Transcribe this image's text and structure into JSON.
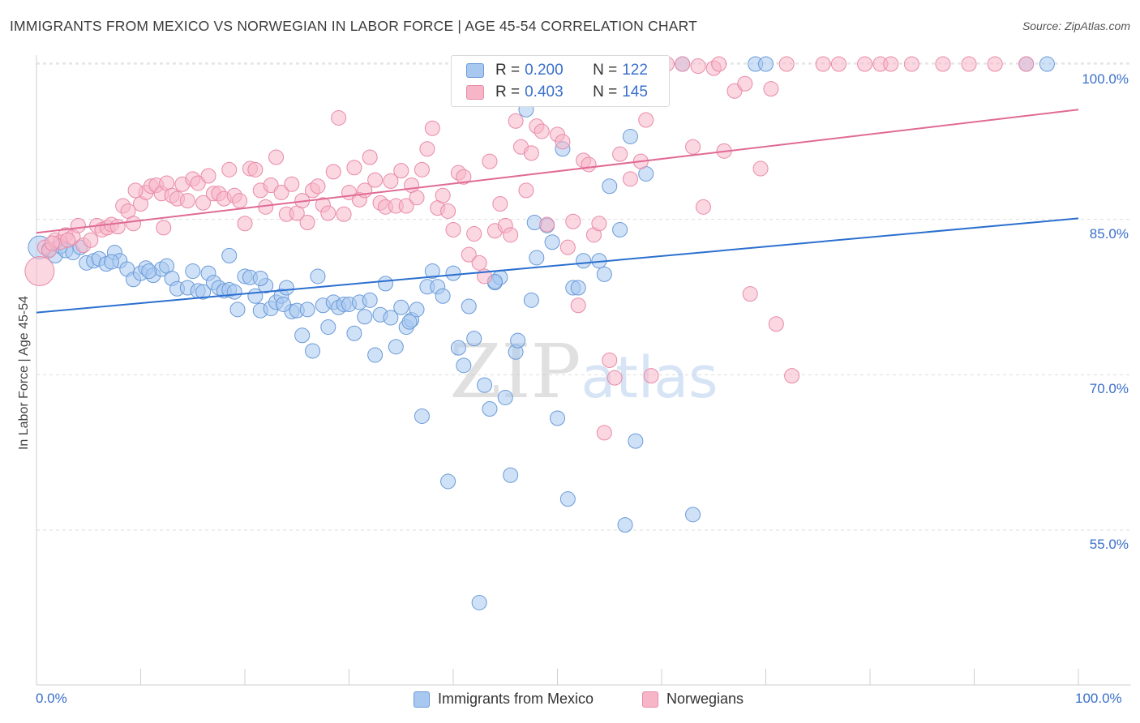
{
  "header": {
    "title": "IMMIGRANTS FROM MEXICO VS NORWEGIAN IN LABOR FORCE | AGE 45-54 CORRELATION CHART",
    "source": "Source: ZipAtlas.com"
  },
  "watermark": "ZIPatlas",
  "legend_top": {
    "rows": [
      {
        "r_label": "R = ",
        "r_value": "0.200",
        "n_label": "N = ",
        "n_value": "122",
        "color": "#a8c8f0"
      },
      {
        "r_label": "R = ",
        "r_value": "0.403",
        "n_label": "N = ",
        "n_value": "145",
        "color": "#f7b6c8"
      }
    ]
  },
  "colors": {
    "blue_fill": "#a8c8f0",
    "blue_stroke": "#6a9ad8",
    "blue_line": "#2b6fcf",
    "pink_fill": "#f7b6c8",
    "pink_stroke": "#e88aa8",
    "pink_line": "#e06a95",
    "grid": "#dddddd",
    "axis_text": "#3a6fcc"
  },
  "chart_data": {
    "type": "scatter",
    "title": "IMMIGRANTS FROM MEXICO VS NORWEGIAN IN LABOR FORCE | AGE 45-54 CORRELATION CHART",
    "xlabel": "",
    "ylabel": "In Labor Force | Age 45-54",
    "xlim": [
      0,
      100
    ],
    "ylim": [
      41.5,
      102.5
    ],
    "x_tick_labels": [
      "0.0%",
      "100.0%"
    ],
    "y_ticks": [
      55,
      70,
      85,
      100
    ],
    "y_tick_labels": [
      "55.0%",
      "70.0%",
      "85.0%",
      "100.0%"
    ],
    "grid": true,
    "legend_position": "bottom",
    "series": [
      {
        "name": "Immigrants from Mexico",
        "color": "#a8c8f0",
        "trend": {
          "x": [
            0,
            100
          ],
          "y": [
            76.0,
            85.1
          ]
        },
        "points": [
          [
            0.3,
            82.3
          ],
          [
            1.2,
            82.1
          ],
          [
            1.8,
            81.5
          ],
          [
            2.3,
            82.4
          ],
          [
            2.8,
            82.0
          ],
          [
            3.5,
            81.8
          ],
          [
            4.2,
            82.3
          ],
          [
            4.8,
            80.8
          ],
          [
            5.5,
            81.0
          ],
          [
            6.0,
            81.2
          ],
          [
            6.7,
            80.7
          ],
          [
            7.5,
            81.8
          ],
          [
            8.0,
            81.0
          ],
          [
            8.7,
            80.2
          ],
          [
            9.3,
            79.2
          ],
          [
            10.0,
            79.8
          ],
          [
            10.5,
            80.3
          ],
          [
            11.2,
            79.6
          ],
          [
            12.0,
            80.2
          ],
          [
            12.5,
            80.5
          ],
          [
            13.0,
            79.3
          ],
          [
            13.5,
            78.3
          ],
          [
            14.5,
            78.4
          ],
          [
            15.0,
            80.0
          ],
          [
            15.5,
            78.1
          ],
          [
            16.0,
            78.0
          ],
          [
            16.5,
            79.8
          ],
          [
            17.0,
            78.9
          ],
          [
            17.5,
            78.4
          ],
          [
            18.0,
            78.1
          ],
          [
            18.5,
            78.2
          ],
          [
            19.0,
            78.0
          ],
          [
            18.5,
            81.5
          ],
          [
            19.3,
            76.3
          ],
          [
            20.0,
            79.5
          ],
          [
            20.5,
            79.4
          ],
          [
            21.0,
            77.6
          ],
          [
            21.5,
            76.2
          ],
          [
            22.0,
            78.6
          ],
          [
            22.5,
            76.4
          ],
          [
            23.0,
            77.0
          ],
          [
            23.5,
            77.6
          ],
          [
            24.0,
            78.4
          ],
          [
            24.5,
            76.1
          ],
          [
            25.0,
            76.2
          ],
          [
            25.5,
            73.8
          ],
          [
            26.0,
            76.3
          ],
          [
            26.5,
            72.3
          ],
          [
            27.0,
            79.5
          ],
          [
            27.5,
            76.7
          ],
          [
            28.0,
            74.6
          ],
          [
            28.5,
            77.0
          ],
          [
            29.0,
            76.5
          ],
          [
            29.5,
            76.8
          ],
          [
            30.0,
            76.8
          ],
          [
            30.5,
            74.0
          ],
          [
            31.0,
            77.0
          ],
          [
            31.5,
            75.6
          ],
          [
            32.0,
            77.2
          ],
          [
            32.5,
            71.9
          ],
          [
            33.0,
            75.8
          ],
          [
            33.5,
            78.8
          ],
          [
            34.0,
            75.5
          ],
          [
            34.5,
            72.7
          ],
          [
            35.0,
            76.5
          ],
          [
            35.5,
            74.6
          ],
          [
            36.0,
            75.3
          ],
          [
            36.5,
            76.3
          ],
          [
            37.0,
            66.0
          ],
          [
            37.5,
            78.5
          ],
          [
            38.0,
            80.0
          ],
          [
            38.5,
            78.5
          ],
          [
            39.0,
            77.6
          ],
          [
            39.5,
            59.7
          ],
          [
            40.0,
            79.8
          ],
          [
            40.5,
            72.6
          ],
          [
            41.0,
            70.9
          ],
          [
            41.5,
            76.6
          ],
          [
            42.0,
            73.5
          ],
          [
            42.5,
            48.0
          ],
          [
            43.0,
            69.0
          ],
          [
            43.5,
            66.7
          ],
          [
            44.0,
            78.9
          ],
          [
            44.5,
            79.4
          ],
          [
            45.0,
            67.8
          ],
          [
            45.5,
            60.3
          ],
          [
            46.0,
            72.2
          ],
          [
            46.2,
            73.3
          ],
          [
            47.0,
            95.6
          ],
          [
            47.5,
            77.2
          ],
          [
            48.0,
            81.3
          ],
          [
            48.5,
            100.0
          ],
          [
            49.0,
            84.4
          ],
          [
            49.5,
            82.8
          ],
          [
            50.0,
            65.8
          ],
          [
            50.5,
            91.8
          ],
          [
            51.0,
            58.0
          ],
          [
            51.5,
            78.4
          ],
          [
            52.0,
            78.4
          ],
          [
            52.5,
            81.0
          ],
          [
            54.0,
            81.0
          ],
          [
            54.5,
            79.7
          ],
          [
            55.0,
            88.2
          ],
          [
            56.0,
            84.0
          ],
          [
            57.0,
            93.0
          ],
          [
            57.5,
            63.6
          ],
          [
            58.5,
            89.4
          ],
          [
            60.0,
            100.0
          ],
          [
            62.0,
            100.0
          ],
          [
            63.0,
            56.5
          ],
          [
            69.0,
            100.0
          ],
          [
            70.0,
            100.0
          ],
          [
            95.0,
            100.0
          ],
          [
            97.0,
            100.0
          ],
          [
            47.8,
            84.7
          ],
          [
            44.0,
            79.0
          ],
          [
            35.8,
            75.1
          ],
          [
            23.7,
            76.8
          ],
          [
            56.5,
            55.5
          ],
          [
            21.5,
            79.3
          ],
          [
            10.8,
            80.0
          ],
          [
            7.2,
            80.9
          ]
        ]
      },
      {
        "name": "Norwegians",
        "color": "#f7b6c8",
        "trend": {
          "x": [
            0,
            100
          ],
          "y": [
            83.7,
            95.6
          ]
        },
        "points": [
          [
            0.3,
            80.0
          ],
          [
            0.8,
            82.3
          ],
          [
            1.2,
            82.0
          ],
          [
            1.8,
            83.0
          ],
          [
            2.3,
            82.8
          ],
          [
            2.8,
            83.5
          ],
          [
            3.5,
            83.3
          ],
          [
            4.0,
            84.4
          ],
          [
            4.5,
            82.5
          ],
          [
            5.2,
            83.0
          ],
          [
            5.8,
            84.4
          ],
          [
            6.3,
            84.0
          ],
          [
            6.8,
            84.2
          ],
          [
            7.2,
            84.5
          ],
          [
            7.8,
            84.3
          ],
          [
            8.3,
            86.3
          ],
          [
            8.8,
            85.8
          ],
          [
            9.3,
            84.6
          ],
          [
            10.0,
            86.5
          ],
          [
            10.5,
            87.6
          ],
          [
            11.0,
            88.2
          ],
          [
            11.5,
            88.3
          ],
          [
            12.0,
            87.5
          ],
          [
            12.5,
            88.5
          ],
          [
            13.0,
            87.3
          ],
          [
            13.5,
            87.0
          ],
          [
            14.0,
            88.4
          ],
          [
            14.5,
            86.8
          ],
          [
            15.0,
            88.9
          ],
          [
            15.5,
            88.5
          ],
          [
            16.0,
            86.6
          ],
          [
            16.5,
            89.2
          ],
          [
            17.0,
            87.5
          ],
          [
            17.5,
            87.5
          ],
          [
            18.0,
            87.0
          ],
          [
            18.5,
            89.8
          ],
          [
            19.0,
            87.3
          ],
          [
            19.5,
            86.8
          ],
          [
            20.0,
            84.6
          ],
          [
            20.5,
            89.9
          ],
          [
            21.0,
            89.8
          ],
          [
            21.5,
            87.8
          ],
          [
            22.0,
            86.2
          ],
          [
            22.5,
            88.3
          ],
          [
            23.0,
            91.0
          ],
          [
            23.5,
            87.6
          ],
          [
            24.0,
            85.5
          ],
          [
            24.5,
            88.4
          ],
          [
            25.0,
            85.6
          ],
          [
            25.5,
            86.8
          ],
          [
            26.0,
            84.7
          ],
          [
            26.5,
            87.8
          ],
          [
            27.0,
            88.2
          ],
          [
            27.5,
            86.4
          ],
          [
            28.0,
            85.6
          ],
          [
            28.5,
            89.6
          ],
          [
            29.0,
            94.8
          ],
          [
            29.5,
            85.5
          ],
          [
            30.0,
            87.6
          ],
          [
            30.5,
            90.0
          ],
          [
            31.0,
            86.9
          ],
          [
            31.5,
            87.8
          ],
          [
            32.0,
            91.0
          ],
          [
            32.5,
            88.8
          ],
          [
            33.0,
            86.6
          ],
          [
            33.5,
            86.2
          ],
          [
            34.0,
            88.7
          ],
          [
            34.5,
            86.3
          ],
          [
            35.0,
            89.7
          ],
          [
            35.5,
            86.3
          ],
          [
            36.0,
            88.3
          ],
          [
            36.5,
            87.1
          ],
          [
            37.0,
            89.8
          ],
          [
            37.5,
            91.8
          ],
          [
            38.0,
            93.8
          ],
          [
            38.5,
            86.1
          ],
          [
            39.0,
            87.3
          ],
          [
            39.5,
            85.8
          ],
          [
            40.0,
            84.0
          ],
          [
            40.5,
            89.5
          ],
          [
            41.0,
            89.1
          ],
          [
            41.5,
            81.6
          ],
          [
            42.0,
            83.6
          ],
          [
            42.5,
            80.8
          ],
          [
            43.0,
            79.5
          ],
          [
            43.5,
            90.6
          ],
          [
            44.0,
            83.9
          ],
          [
            44.5,
            86.5
          ],
          [
            45.0,
            84.4
          ],
          [
            45.5,
            83.5
          ],
          [
            46.0,
            94.5
          ],
          [
            46.5,
            92.0
          ],
          [
            47.0,
            87.8
          ],
          [
            47.5,
            91.4
          ],
          [
            48.0,
            94.0
          ],
          [
            48.5,
            93.5
          ],
          [
            49.0,
            84.5
          ],
          [
            49.5,
            100.0
          ],
          [
            50.0,
            93.2
          ],
          [
            50.5,
            92.5
          ],
          [
            51.0,
            82.3
          ],
          [
            51.5,
            84.8
          ],
          [
            52.0,
            76.7
          ],
          [
            52.5,
            90.7
          ],
          [
            53.0,
            90.3
          ],
          [
            53.5,
            83.5
          ],
          [
            54.0,
            84.6
          ],
          [
            54.5,
            64.4
          ],
          [
            55.0,
            71.4
          ],
          [
            55.5,
            69.7
          ],
          [
            56.0,
            91.3
          ],
          [
            57.0,
            88.9
          ],
          [
            58.0,
            90.6
          ],
          [
            58.5,
            94.6
          ],
          [
            59.0,
            69.9
          ],
          [
            60.5,
            100.0
          ],
          [
            62.0,
            100.0
          ],
          [
            63.0,
            92.0
          ],
          [
            63.5,
            99.8
          ],
          [
            64.0,
            86.2
          ],
          [
            65.0,
            99.6
          ],
          [
            65.5,
            100.0
          ],
          [
            66.0,
            91.6
          ],
          [
            67.0,
            97.4
          ],
          [
            68.0,
            98.1
          ],
          [
            68.5,
            77.8
          ],
          [
            69.5,
            89.9
          ],
          [
            70.5,
            97.6
          ],
          [
            71.0,
            74.9
          ],
          [
            72.0,
            100.0
          ],
          [
            72.5,
            69.9
          ],
          [
            75.5,
            100.0
          ],
          [
            77.0,
            100.0
          ],
          [
            79.5,
            100.0
          ],
          [
            81.0,
            100.0
          ],
          [
            82.0,
            100.0
          ],
          [
            84.0,
            100.0
          ],
          [
            87.0,
            100.0
          ],
          [
            89.5,
            100.0
          ],
          [
            92.0,
            100.0
          ],
          [
            95.0,
            100.0
          ],
          [
            1.5,
            82.7
          ],
          [
            3.0,
            83.0
          ],
          [
            9.5,
            87.8
          ],
          [
            12.2,
            84.2
          ]
        ]
      }
    ]
  },
  "bottom_legend": {
    "items": [
      {
        "label": "Immigrants from Mexico"
      },
      {
        "label": "Norwegians"
      }
    ]
  }
}
